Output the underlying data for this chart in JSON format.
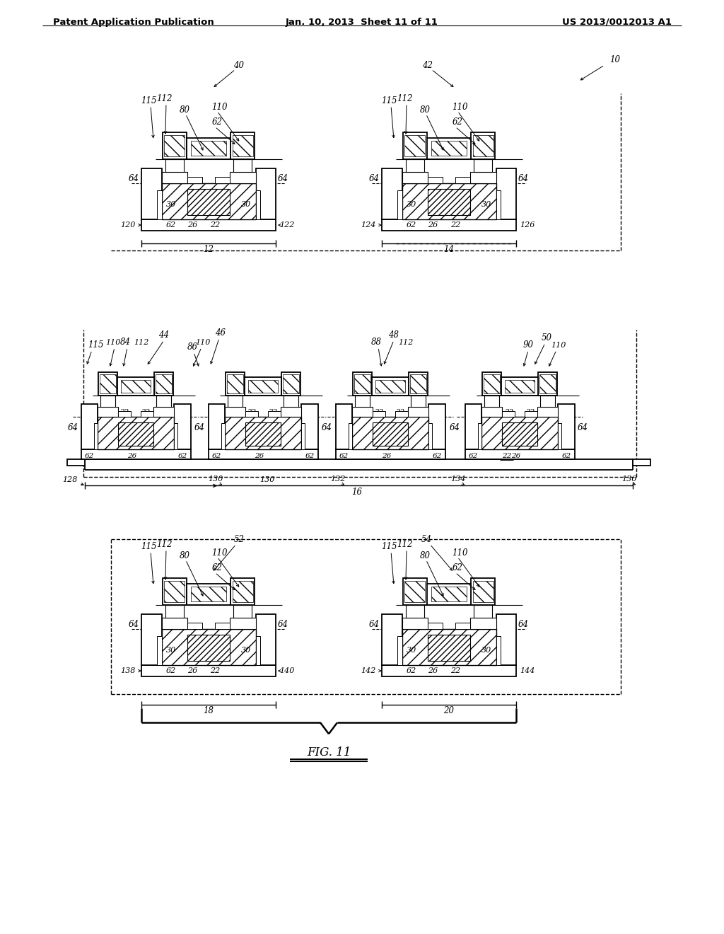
{
  "title_left": "Patent Application Publication",
  "title_center": "Jan. 10, 2013  Sheet 11 of 11",
  "title_right": "US 2013/0012013 A1",
  "bg_color": "#ffffff",
  "fig_number": "FIG. 11"
}
